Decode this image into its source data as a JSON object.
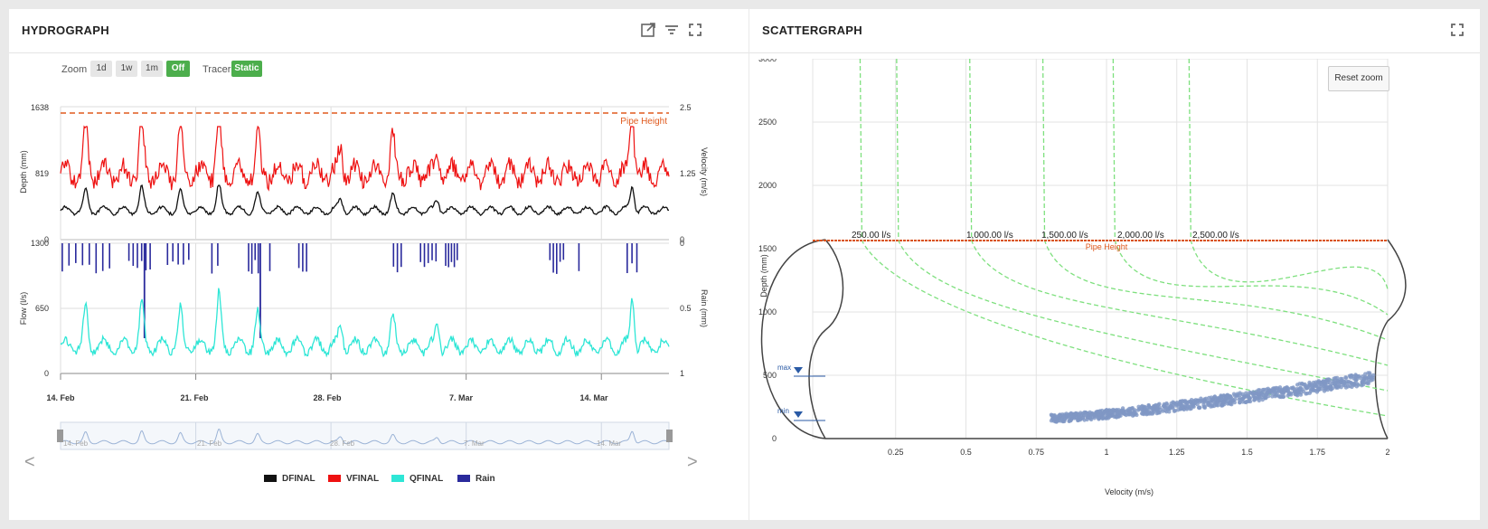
{
  "hydrograph": {
    "title": "HYDROGRAPH",
    "icons": [
      "external-link-icon",
      "filter-icon",
      "fullscreen-icon"
    ],
    "zoom": {
      "label": "Zoom",
      "buttons": [
        "1d",
        "1w",
        "1m",
        "Off"
      ],
      "active": "Off"
    },
    "tracer": {
      "label": "Tracer",
      "value": "Static"
    },
    "top_chart": {
      "y_left_label": "Depth (mm)",
      "y_left_ticks": [
        "1638",
        "819",
        "0"
      ],
      "y_right_label": "Velocity (m/s)",
      "y_right_ticks": [
        "2.5",
        "1.25",
        "0"
      ],
      "pipe_height_label": "Pipe Height"
    },
    "bottom_chart": {
      "y_left_label": "Flow (l/s)",
      "y_left_ticks": [
        "1300",
        "650",
        "0"
      ],
      "y_right_label": "Rain (mm)",
      "y_right_ticks": [
        "0",
        "0.5",
        "1"
      ]
    },
    "x_ticks": [
      "14. Feb",
      "21. Feb",
      "28. Feb",
      "7. Mar",
      "14. Mar"
    ],
    "navigator_ticks": [
      "14. Feb",
      "21. Feb",
      "28. Feb",
      "7. Mar",
      "14. Mar"
    ],
    "nav_left": "<",
    "nav_right": ">",
    "legend": [
      {
        "name": "DFINAL",
        "color": "#111111"
      },
      {
        "name": "VFINAL",
        "color": "#ee1111"
      },
      {
        "name": "QFINAL",
        "color": "#2ee6d6"
      },
      {
        "name": "Rain",
        "color": "#2a2a9c"
      }
    ]
  },
  "scattergraph": {
    "title": "SCATTERGRAPH",
    "icons": [
      "fullscreen-icon"
    ],
    "reset_zoom": "Reset zoom",
    "x_label": "Velocity (m/s)",
    "y_label": "Depth (mm)",
    "x_ticks": [
      "0.25",
      "0.5",
      "0.75",
      "1",
      "1.25",
      "1.5",
      "1.75",
      "2"
    ],
    "y_ticks": [
      "3000",
      "2500",
      "2000",
      "1500",
      "1000",
      "500",
      "0"
    ],
    "pipe_height_label": "Pipe Height",
    "flow_labels": [
      "250.00 l/s",
      "1,000.00 l/s",
      "1,500.00 l/s",
      "2,000.00 l/s",
      "2,500.00 l/s"
    ],
    "max_label": "max",
    "min_label": "min"
  },
  "chart_data": [
    {
      "type": "line",
      "title": "",
      "x_range": [
        "14. Feb",
        "17. Mar"
      ],
      "series": [
        {
          "name": "DFINAL",
          "axis": "Depth (mm)",
          "typical": 200,
          "peaks": [
            430,
            460,
            640
          ]
        },
        {
          "name": "VFINAL",
          "axis": "Velocity (m/s)",
          "typical": 1.1,
          "peaks": [
            1.9,
            2.0,
            1.95
          ]
        }
      ],
      "pipe_height": 1560,
      "ylim": [
        0,
        1638
      ]
    },
    {
      "type": "line",
      "title": "",
      "series": [
        {
          "name": "QFINAL",
          "axis": "Flow (l/s)",
          "typical": 230,
          "peaks": [
            800,
            1000,
            1150,
            880
          ]
        },
        {
          "name": "Rain",
          "axis": "Rain (mm)",
          "type": "bar"
        }
      ],
      "ylim": [
        0,
        1300
      ]
    },
    {
      "type": "scatter",
      "title": "",
      "xlabel": "Velocity (m/s)",
      "ylabel": "Depth (mm)",
      "xlim": [
        0,
        2
      ],
      "ylim": [
        0,
        3000
      ],
      "pipe_height": 1560,
      "iso_flow_lines": [
        250,
        1000,
        1500,
        2000,
        2500
      ],
      "cluster": {
        "x_range": [
          0.8,
          1.95
        ],
        "y_range": [
          150,
          520
        ]
      }
    }
  ]
}
